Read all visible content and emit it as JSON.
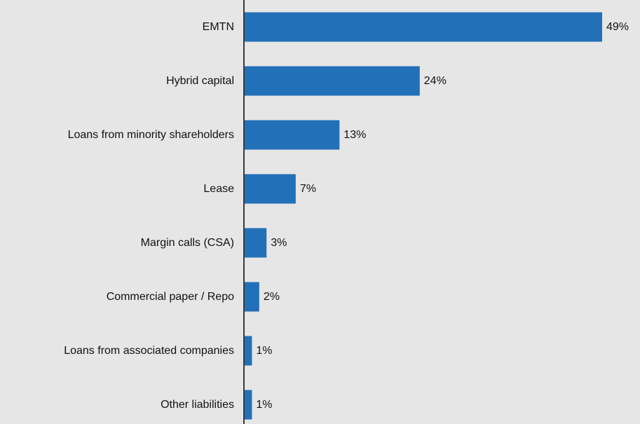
{
  "chart_data": {
    "type": "bar",
    "orientation": "horizontal",
    "categories": [
      "EMTN",
      "Hybrid capital",
      "Loans from minority shareholders",
      "Lease",
      "Margin calls (CSA)",
      "Commercial paper / Repo",
      "Loans from associated companies",
      "Other liabilities"
    ],
    "values": [
      49,
      24,
      13,
      7,
      3,
      2,
      1,
      1
    ],
    "value_labels": [
      "49%",
      "24%",
      "13%",
      "7%",
      "3%",
      "2%",
      "1%",
      "1%"
    ],
    "xlim": [
      0,
      49
    ],
    "bar_color": "#2270b8",
    "background_color": "#e6e6e6",
    "grid": false,
    "legend": "none"
  }
}
